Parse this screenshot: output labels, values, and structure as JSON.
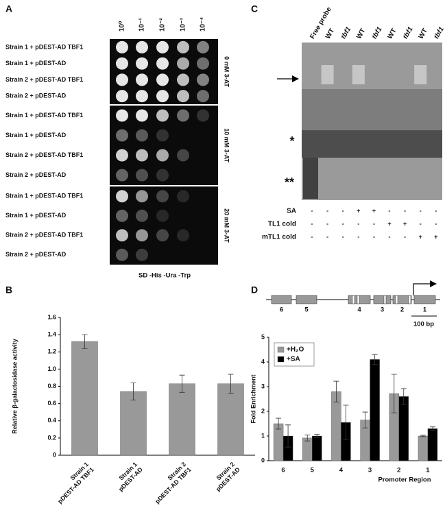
{
  "panel_labels": [
    "A",
    "B",
    "C",
    "D"
  ],
  "spot_assay": {
    "dilutions": [
      "10⁰",
      "10⁻¹",
      "10⁻²",
      "10⁻³",
      "10⁻⁴"
    ],
    "rows": [
      "Strain 1 + pDEST-AD TBF1",
      "Strain 1 + pDEST-AD",
      "Strain 2 + pDEST-AD TBF1",
      "Strain 2 + pDEST-AD",
      "Strain 1 + pDEST-AD TBF1",
      "Strain 1 + pDEST-AD",
      "Strain 2 + pDEST-AD TBF1",
      "Strain 2 + pDEST-AD",
      "Strain 1 + pDEST-AD TBF1",
      "Strain 1 + pDEST-AD",
      "Strain 2 + pDEST-AD TBF1",
      "Strain 2 + pDEST-AD"
    ],
    "conditions": [
      "0 mM 3-AT",
      "10 mM 3-AT",
      "20 mM 3-AT"
    ],
    "medium": "SD -His -Ura -Trp"
  },
  "emsa": {
    "lanes": [
      "Free probe",
      "WT",
      "tbf1",
      "WT",
      "tbf1",
      "WT",
      "tbf1",
      "WT",
      "tbf1"
    ],
    "band_marks": [
      "*",
      "**"
    ],
    "treatments": [
      {
        "name": "SA",
        "signs": [
          "-",
          "-",
          "-",
          "+",
          "+",
          "-",
          "-",
          "-",
          "-"
        ]
      },
      {
        "name": "TL1 cold",
        "signs": [
          "-",
          "-",
          "-",
          "-",
          "-",
          "+",
          "+",
          "-",
          "-"
        ]
      },
      {
        "name": "mTL1 cold",
        "signs": [
          "-",
          "-",
          "-",
          "-",
          "-",
          "-",
          "-",
          "+",
          "+"
        ]
      }
    ]
  },
  "promoter_map": {
    "regions": [
      "6",
      "5",
      "4",
      "3",
      "2",
      "1"
    ],
    "scale": "100 bp"
  },
  "chart_data": [
    {
      "type": "bar",
      "ylabel": "Relative β-galactosidase activity",
      "categories": [
        "Strain 1\npDEST-AD TBF1",
        "Strain 1\npDEST-AD",
        "Strain 2\npDEST-AD TBF1",
        "Strain 2\npDEST-AD"
      ],
      "values": [
        1.32,
        0.74,
        0.83,
        0.83
      ],
      "errors": [
        0.08,
        0.1,
        0.1,
        0.11
      ],
      "color": "#999999",
      "ylim": [
        0,
        1.6
      ],
      "yticks": [
        0,
        0.2,
        0.4,
        0.6,
        0.8,
        {
          "value": 1,
          "label": "1.0"
        },
        1.2,
        1.4,
        1.6
      ]
    },
    {
      "type": "bar",
      "ylabel": "Fold Enrichment",
      "xlabel": "Promoter Region",
      "categories": [
        "6",
        "5",
        "4",
        "3",
        "2",
        "1"
      ],
      "series": [
        {
          "name": "+H₂O",
          "color": "#999999",
          "values": [
            1.5,
            0.92,
            2.8,
            1.65,
            2.72,
            1.0
          ],
          "errors": [
            0.22,
            0.12,
            0.42,
            0.32,
            0.78,
            0.03
          ]
        },
        {
          "name": "+SA",
          "color": "#000000",
          "values": [
            1.0,
            1.0,
            1.55,
            4.1,
            2.6,
            1.3
          ],
          "errors": [
            0.45,
            0.07,
            0.7,
            0.2,
            0.32,
            0.07
          ]
        }
      ],
      "ylim": [
        0,
        5
      ],
      "yticks": [
        0,
        1,
        2,
        3,
        4,
        5
      ],
      "legend": "upper left"
    }
  ]
}
